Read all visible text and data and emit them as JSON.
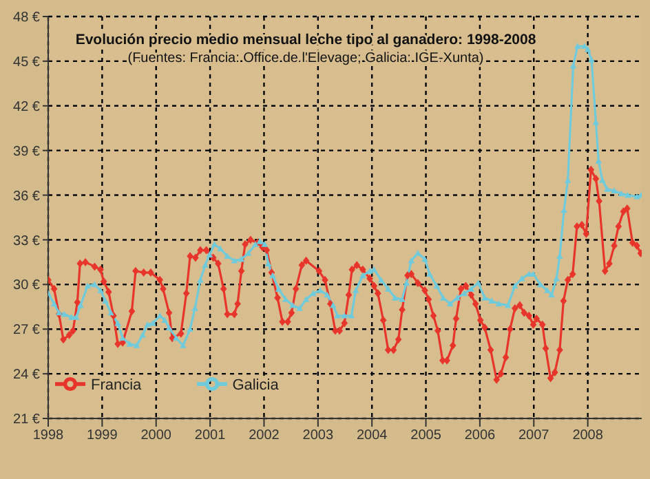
{
  "chart_data": {
    "type": "line",
    "title": "Evolución  precio medio mensual  leche tipo al ganadero: 1998-2008",
    "subtitle": "(Fuentes: Francia: Office de l'Elevage; Galicia: IGE-Xunta)",
    "xlim": [
      1998,
      2009
    ],
    "xticks": [
      1998,
      1999,
      2000,
      2001,
      2002,
      2003,
      2004,
      2005,
      2006,
      2007,
      2008
    ],
    "ylim": [
      21,
      48
    ],
    "yticks": [
      {
        "value": 21,
        "label": "21 €"
      },
      {
        "value": 24,
        "label": "24 €"
      },
      {
        "value": 27,
        "label": "27 €"
      },
      {
        "value": 30,
        "label": "30 €"
      },
      {
        "value": 33,
        "label": "33 €"
      },
      {
        "value": 36,
        "label": "36 €"
      },
      {
        "value": 39,
        "label": "39 €"
      },
      {
        "value": 42,
        "label": "42 €"
      },
      {
        "value": 45,
        "label": "45 €"
      },
      {
        "value": 48,
        "label": "48 €"
      }
    ],
    "grid": true,
    "legend": "bottom left",
    "line_style": "solid",
    "series": [
      {
        "name": "Francia",
        "color": "#e8352b",
        "marker": "diamond",
        "x": [
          1998.0,
          1998.11,
          1998.2,
          1998.28,
          1998.39,
          1998.46,
          1998.54,
          1998.59,
          1998.69,
          1998.86,
          1998.97,
          1999.03,
          1999.12,
          1999.21,
          1999.29,
          1999.38,
          1999.55,
          1999.62,
          1999.77,
          1999.9,
          2000.07,
          2000.13,
          2000.24,
          2000.3,
          2000.46,
          2000.56,
          2000.63,
          2000.73,
          2000.82,
          2000.93,
          2001.06,
          2001.15,
          2001.25,
          2001.32,
          2001.45,
          2001.51,
          2001.58,
          2001.65,
          2001.75,
          2001.88,
          2001.97,
          2002.05,
          2002.14,
          2002.25,
          2002.34,
          2002.44,
          2002.51,
          2002.59,
          2002.7,
          2002.78,
          2003.02,
          2003.13,
          2003.23,
          2003.32,
          2003.4,
          2003.49,
          2003.57,
          2003.63,
          2003.72,
          2003.83,
          2003.96,
          2004.04,
          2004.11,
          2004.21,
          2004.3,
          2004.4,
          2004.49,
          2004.56,
          2004.66,
          2004.73,
          2004.85,
          2004.98,
          2005.05,
          2005.14,
          2005.22,
          2005.31,
          2005.39,
          2005.5,
          2005.56,
          2005.65,
          2005.74,
          2005.84,
          2005.92,
          2006.01,
          2006.09,
          2006.2,
          2006.31,
          2006.39,
          2006.48,
          2006.56,
          2006.65,
          2006.74,
          2006.82,
          2006.91,
          2006.99,
          2007.05,
          2007.16,
          2007.22,
          2007.31,
          2007.39,
          2007.48,
          2007.55,
          2007.63,
          2007.72,
          2007.8,
          2007.89,
          2007.97,
          2008.06,
          2008.15,
          2008.21,
          2008.32,
          2008.4,
          2008.49,
          2008.57,
          2008.66,
          2008.73,
          2008.83,
          2008.91,
          2008.98
        ],
        "values": [
          30.3,
          29.7,
          28.0,
          26.3,
          26.6,
          26.9,
          28.8,
          31.4,
          31.5,
          31.2,
          31.0,
          30.2,
          29.5,
          27.9,
          26.0,
          26.1,
          28.2,
          30.9,
          30.8,
          30.8,
          30.3,
          29.7,
          28.1,
          26.4,
          26.7,
          29.4,
          31.9,
          31.8,
          32.3,
          32.3,
          31.8,
          31.4,
          29.7,
          28.0,
          28.0,
          28.7,
          30.9,
          32.7,
          33.0,
          32.8,
          32.5,
          32.3,
          30.8,
          29.1,
          27.5,
          27.5,
          28.1,
          29.7,
          31.3,
          31.6,
          30.9,
          30.3,
          28.7,
          26.9,
          26.9,
          27.4,
          29.3,
          31.0,
          31.3,
          31.0,
          30.4,
          29.9,
          29.4,
          27.6,
          25.6,
          25.6,
          26.3,
          28.3,
          30.6,
          30.7,
          30.1,
          29.6,
          29.0,
          27.9,
          26.9,
          24.9,
          24.9,
          25.9,
          27.7,
          29.7,
          29.9,
          29.3,
          28.7,
          27.6,
          27.1,
          25.6,
          23.6,
          24.0,
          25.1,
          27.0,
          28.4,
          28.6,
          28.1,
          27.9,
          27.3,
          27.7,
          27.3,
          25.7,
          23.7,
          24.1,
          25.6,
          28.9,
          30.3,
          30.7,
          33.9,
          34.0,
          33.4,
          37.7,
          37.1,
          35.6,
          30.9,
          31.4,
          32.6,
          33.9,
          34.9,
          35.1,
          32.8,
          32.6,
          32.1
        ]
      },
      {
        "name": "Galicia",
        "color": "#6fcbdc",
        "marker": "triangle",
        "x": [
          1998.0,
          1998.11,
          1998.2,
          1998.3,
          1998.43,
          1998.52,
          1998.6,
          1998.73,
          1998.86,
          1998.97,
          1999.06,
          1999.16,
          1999.29,
          1999.38,
          1999.51,
          1999.64,
          1999.75,
          1999.84,
          1999.94,
          2000.07,
          2000.16,
          2000.24,
          2000.37,
          2000.5,
          2000.63,
          2000.72,
          2000.82,
          2000.91,
          2000.99,
          2001.08,
          2001.19,
          2001.32,
          2001.45,
          2001.58,
          2001.71,
          2001.84,
          2001.92,
          2002.01,
          2002.08,
          2002.16,
          2002.27,
          2002.4,
          2002.53,
          2002.66,
          2002.78,
          2002.91,
          2003.04,
          2003.17,
          2003.28,
          2003.36,
          2003.49,
          2003.62,
          2003.7,
          2003.83,
          2003.96,
          2004.04,
          2004.17,
          2004.3,
          2004.43,
          2004.56,
          2004.64,
          2004.73,
          2004.85,
          2004.98,
          2005.07,
          2005.2,
          2005.32,
          2005.45,
          2005.58,
          2005.71,
          2005.84,
          2005.97,
          2006.09,
          2006.22,
          2006.35,
          2006.52,
          2006.65,
          2006.78,
          2006.91,
          2006.99,
          2007.12,
          2007.25,
          2007.33,
          2007.42,
          2007.48,
          2007.56,
          2007.63,
          2007.73,
          2007.81,
          2007.94,
          2008.0,
          2008.07,
          2008.15,
          2008.2,
          2008.27,
          2008.36,
          2008.49,
          2008.62,
          2008.74,
          2008.91,
          2008.99
        ],
        "values": [
          29.4,
          28.7,
          28.1,
          28.0,
          27.8,
          27.8,
          28.6,
          29.9,
          30.0,
          29.6,
          28.9,
          28.1,
          27.4,
          26.4,
          26.0,
          25.9,
          26.6,
          27.3,
          27.4,
          27.9,
          27.6,
          27.1,
          26.4,
          25.9,
          27.0,
          28.4,
          30.3,
          31.3,
          32.0,
          32.7,
          32.4,
          31.9,
          31.6,
          31.7,
          32.1,
          32.7,
          32.9,
          32.7,
          31.4,
          30.6,
          29.7,
          29.0,
          28.6,
          28.4,
          29.0,
          29.4,
          29.6,
          29.3,
          28.6,
          27.9,
          27.9,
          27.9,
          29.6,
          30.6,
          30.9,
          31.0,
          30.3,
          29.7,
          29.1,
          29.0,
          30.1,
          31.6,
          32.1,
          31.7,
          30.7,
          29.9,
          29.1,
          28.7,
          29.1,
          29.4,
          29.7,
          30.1,
          29.1,
          28.9,
          28.7,
          28.6,
          29.9,
          30.4,
          30.7,
          30.7,
          30.0,
          29.6,
          29.3,
          30.4,
          31.9,
          35.0,
          37.0,
          44.7,
          46.0,
          46.0,
          45.8,
          45.1,
          40.9,
          38.3,
          37.0,
          36.4,
          36.3,
          36.1,
          36.0,
          35.9,
          36.0
        ]
      }
    ]
  }
}
